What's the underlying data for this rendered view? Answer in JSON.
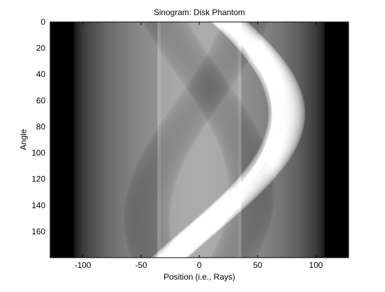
{
  "chart_data": {
    "type": "heatmap",
    "title": "Sinogram: Disk Phantom",
    "xlabel": "Position (i.e., Rays)",
    "ylabel": "Angle",
    "xlim": [
      -128,
      128
    ],
    "ylim": [
      0,
      180
    ],
    "y_reversed": true,
    "colormap": "gray",
    "x_ticks": [
      -100,
      -50,
      0,
      50,
      100
    ],
    "x_tick_labels": [
      "-100",
      "-50",
      "0",
      "50",
      "100"
    ],
    "y_ticks": [
      0,
      20,
      40,
      60,
      80,
      100,
      120,
      140,
      160
    ],
    "y_tick_labels": [
      "0",
      "20",
      "40",
      "60",
      "80",
      "100",
      "120",
      "140",
      "160"
    ],
    "background_disk": {
      "radius": 108,
      "intensity": 0.6
    },
    "vertical_bands": [
      {
        "x_start": -33,
        "x_end": 33,
        "intensity": 0.07
      },
      {
        "x_start": 33,
        "x_end": 36,
        "intensity": 0.12
      },
      {
        "x_start": -36,
        "x_end": -33,
        "intensity": 0.12
      }
    ],
    "sinusoid_traces": [
      {
        "amplitude": 75,
        "phase_deg": 70,
        "radius": 16,
        "intensity": 0.55
      },
      {
        "amplitude": 66,
        "phase_deg": 70,
        "radius": 4,
        "intensity": 0.35
      },
      {
        "amplitude": 45,
        "phase_deg": -30,
        "radius": 20,
        "intensity": -0.12
      },
      {
        "amplitude": 45,
        "phase_deg": 130,
        "radius": 20,
        "intensity": -0.12
      }
    ]
  }
}
